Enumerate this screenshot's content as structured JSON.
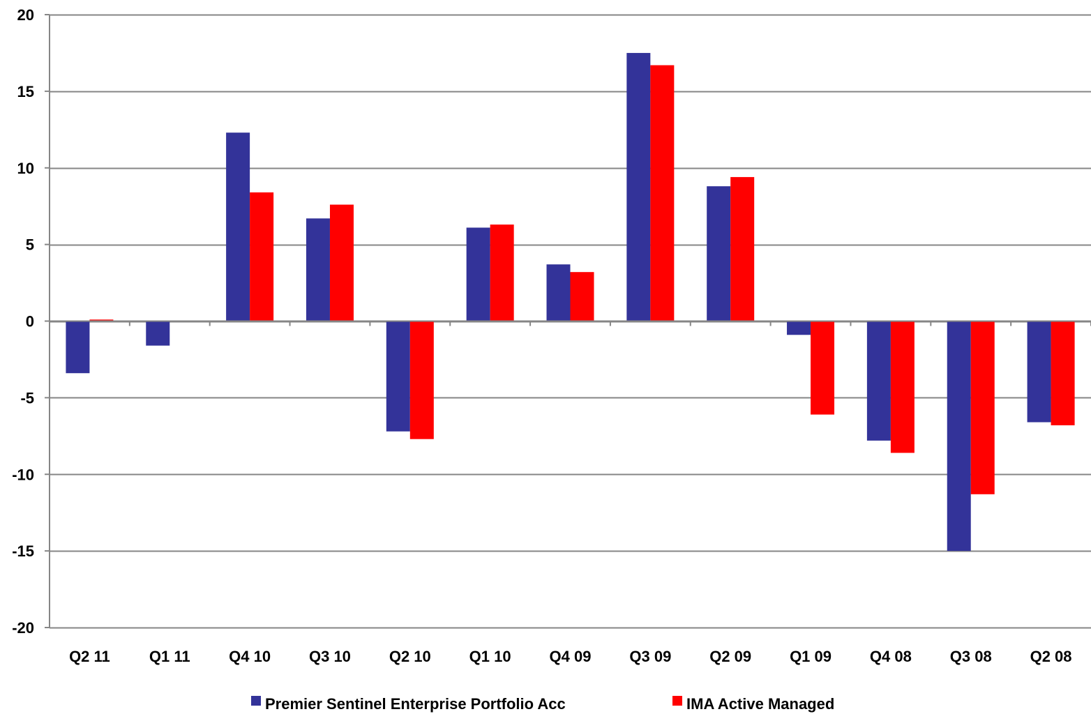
{
  "chart_data": {
    "type": "bar",
    "categories": [
      "Q2 11",
      "Q1 11",
      "Q4 10",
      "Q3 10",
      "Q2 10",
      "Q1 10",
      "Q4 09",
      "Q3 09",
      "Q2 09",
      "Q1 09",
      "Q4 08",
      "Q3 08",
      "Q2 08"
    ],
    "series": [
      {
        "name": "Premier Sentinel Enterprise Portfolio Acc",
        "color": "#333399",
        "values": [
          -3.4,
          -1.6,
          12.3,
          6.7,
          -7.2,
          6.1,
          3.7,
          17.5,
          8.8,
          -0.9,
          -7.8,
          -15.0,
          -6.6
        ]
      },
      {
        "name": "IMA Active Managed",
        "color": "#ff0000",
        "values": [
          0.1,
          0.0,
          8.4,
          7.6,
          -7.7,
          6.3,
          3.2,
          16.7,
          9.4,
          -6.1,
          -8.6,
          -11.3,
          -6.8
        ]
      }
    ],
    "ylim": [
      -20,
      20
    ],
    "yticks": [
      "20",
      "15",
      "10",
      "5",
      "0",
      "-5",
      "-10",
      "-15",
      "-20"
    ],
    "grid": true,
    "legend": "bottom",
    "title": "",
    "xlabel": "",
    "ylabel": ""
  }
}
